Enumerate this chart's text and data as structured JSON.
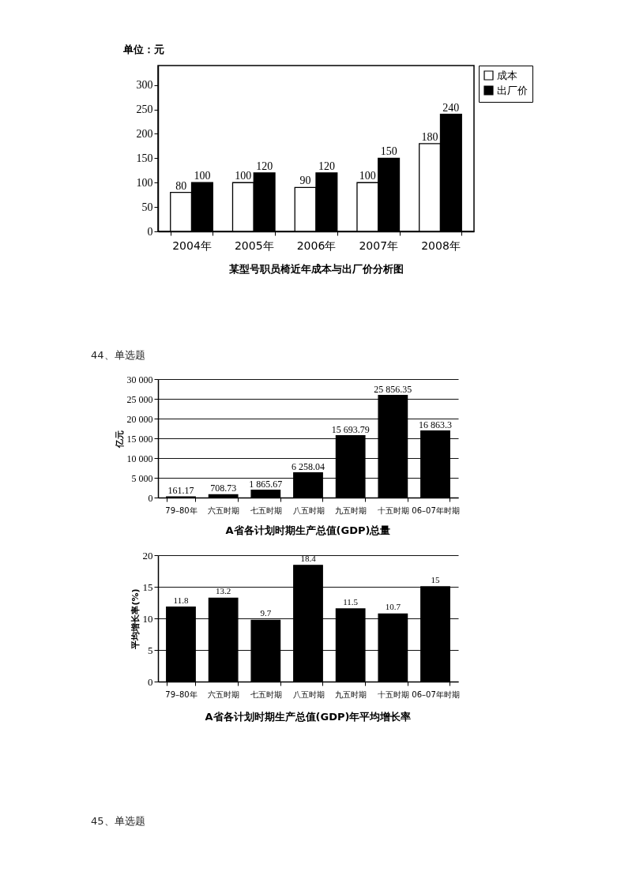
{
  "chart_data": [
    {
      "type": "bar",
      "title": "某型号职员椅近年成本与出厂价分析图",
      "ylabel": "单位：元",
      "categories": [
        "2004年",
        "2005年",
        "2006年",
        "2007年",
        "2008年"
      ],
      "series": [
        {
          "name": "成本",
          "color": "#ffffff",
          "values": [
            80,
            100,
            90,
            100,
            180
          ]
        },
        {
          "name": "出厂价",
          "color": "#000000",
          "values": [
            100,
            120,
            120,
            150,
            240
          ]
        }
      ],
      "ylim": [
        0,
        340
      ],
      "yticks": [
        0,
        50,
        100,
        150,
        200,
        250,
        300
      ],
      "data_labels": true,
      "legend": "right",
      "grid": false
    },
    {
      "type": "bar",
      "title": "A省各计划时期生产总值(GDP)总量",
      "ylabel": "亿元",
      "categories": [
        "79–80年",
        "六五时期",
        "七五时期",
        "八五时期",
        "九五时期",
        "十五时期",
        "06–07年时期"
      ],
      "values": [
        161.17,
        708.73,
        1865.67,
        6258.04,
        15693.79,
        25856.35,
        16863.3
      ],
      "color": "#000000",
      "value_labels": [
        "161.17",
        "708.73",
        "1 865.67",
        "6 258.04",
        "15 693.79",
        "25 856.35",
        "16 863.3"
      ],
      "ylim": [
        0,
        30000
      ],
      "yticks": [
        0,
        {
          "value": 5000,
          "label": "5 000"
        },
        {
          "value": 10000,
          "label": "10 000"
        },
        {
          "value": 15000,
          "label": "15 000"
        },
        {
          "value": 20000,
          "label": "20 000"
        },
        {
          "value": 25000,
          "label": "25 000"
        },
        {
          "value": 30000,
          "label": "30 000"
        }
      ],
      "grid": "y",
      "annotations": [
        "44、单选题"
      ]
    },
    {
      "type": "bar",
      "title": "A省各计划时期生产总值(GDP)年平均增长率",
      "ylabel": "平均增长率(%)",
      "categories": [
        "79–80年",
        "六五时期",
        "七五时期",
        "八五时期",
        "九五时期",
        "十五时期",
        "06–07年时期"
      ],
      "values": [
        11.8,
        13.2,
        9.7,
        18.4,
        11.5,
        10.7,
        15
      ],
      "color": "#000000",
      "ylim": [
        0,
        20
      ],
      "yticks": [
        0,
        5,
        10,
        15,
        20
      ],
      "data_labels": true,
      "grid": "y",
      "annotations": [
        "45、单选题"
      ]
    }
  ]
}
